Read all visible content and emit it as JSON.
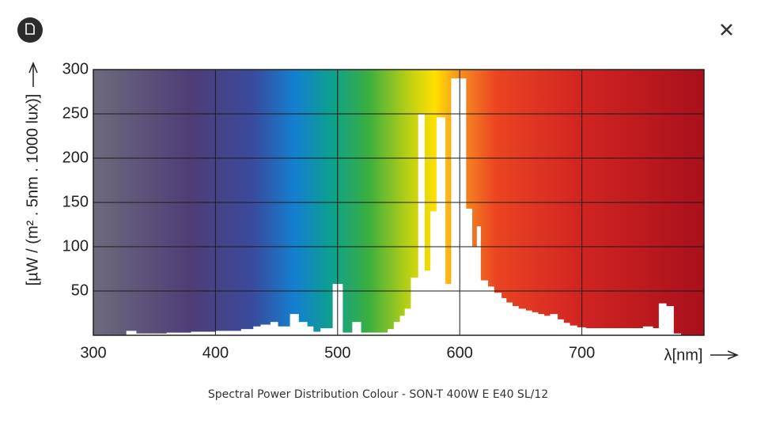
{
  "chart_data": {
    "type": "step",
    "y_label": "[µW / (m² . 5nm . 1000 lux)]",
    "x_label": "λ[nm]",
    "x": [
      300,
      327,
      335,
      360,
      380,
      400,
      421,
      431,
      437,
      445,
      451,
      461,
      468,
      475,
      480,
      486,
      496,
      504,
      512,
      519,
      541,
      546,
      551,
      555,
      560,
      566,
      571,
      576,
      581,
      588,
      593,
      605,
      610,
      614,
      617,
      623,
      628,
      634,
      638,
      643,
      648,
      654,
      659,
      664,
      669,
      674,
      680,
      685,
      690,
      696,
      703,
      716,
      750,
      758,
      763,
      769,
      775,
      781
    ],
    "values": [
      0,
      5,
      2,
      3,
      4,
      5,
      7,
      10,
      12,
      15,
      10,
      24,
      15,
      10,
      4,
      8,
      58,
      3,
      15,
      3,
      7,
      15,
      22,
      30,
      65,
      250,
      73,
      140,
      246,
      58,
      290,
      143,
      100,
      123,
      62,
      55,
      48,
      42,
      37,
      33,
      30,
      28,
      26,
      24,
      22,
      24,
      18,
      14,
      11,
      9,
      8,
      8,
      10,
      8,
      36,
      33,
      2,
      0
    ],
    "color": "#ffffff",
    "xlim": [
      300,
      800
    ],
    "ylim": [
      0,
      300
    ],
    "xticks": [
      300,
      400,
      500,
      600,
      700
    ],
    "yticks": [
      50,
      100,
      150,
      200,
      250,
      300
    ],
    "grid": true
  },
  "caption": "Spectral Power Distribution Colour - SON-T 400W E E40 SL/12"
}
